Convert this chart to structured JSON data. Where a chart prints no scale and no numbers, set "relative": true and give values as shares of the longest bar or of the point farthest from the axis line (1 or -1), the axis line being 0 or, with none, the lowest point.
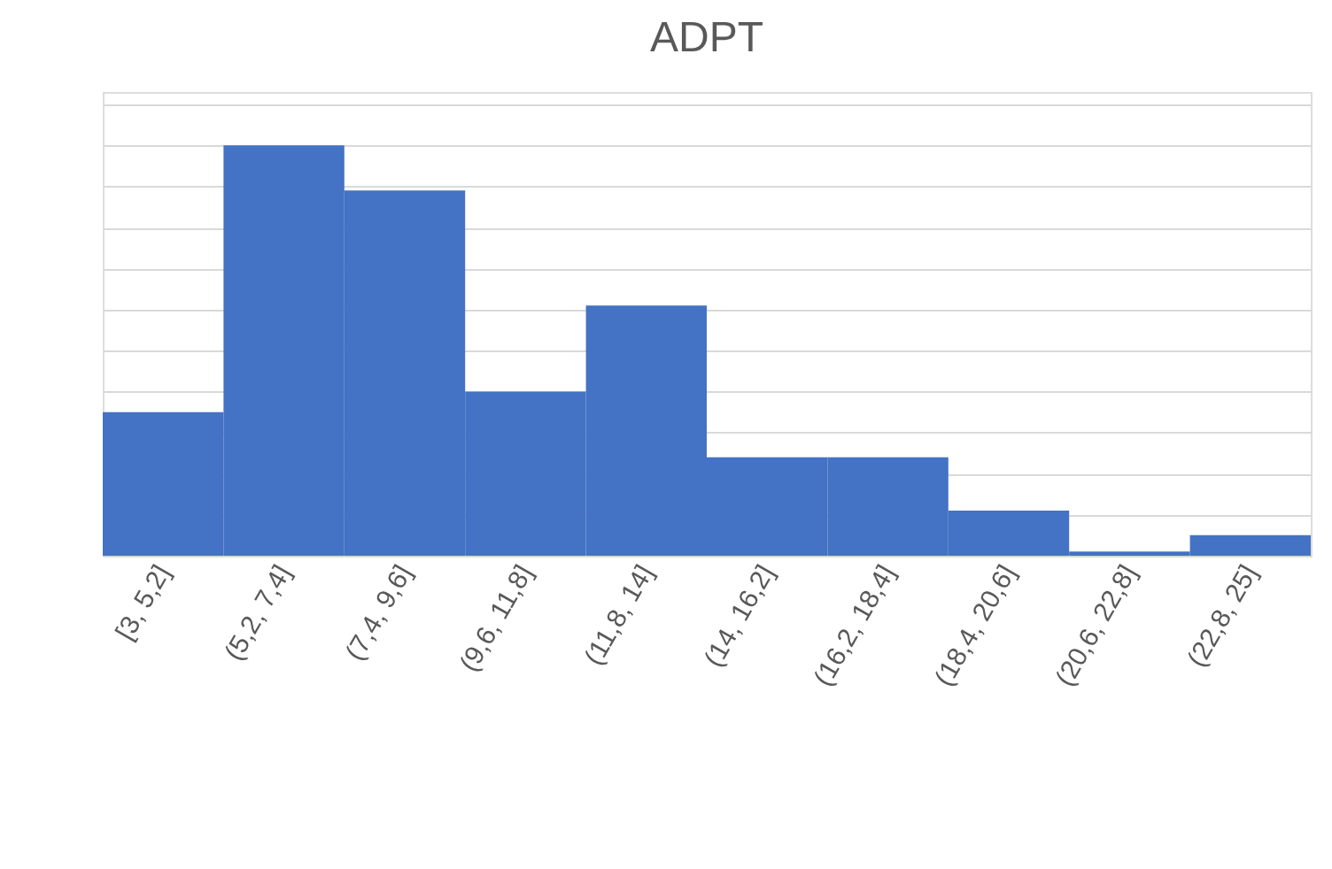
{
  "chart_data": {
    "type": "bar",
    "title": "ADPT",
    "categories": [
      "[3, 5,2]",
      "(5,2, 7,4]",
      "(7,4, 9,6]",
      "(9,6, 11,8]",
      "(11,8, 14]",
      "(14, 16,2]",
      "(16,2, 18,4]",
      "(18,4, 20,6]",
      "(20,6, 22,8]",
      "(22,8, 25]"
    ],
    "values": [
      0.35,
      1,
      0.89,
      0.4,
      0.61,
      0.24,
      0.24,
      0.11,
      0.01,
      0.05
    ],
    "color": "#4472c4",
    "relative": true,
    "grid": "y"
  }
}
